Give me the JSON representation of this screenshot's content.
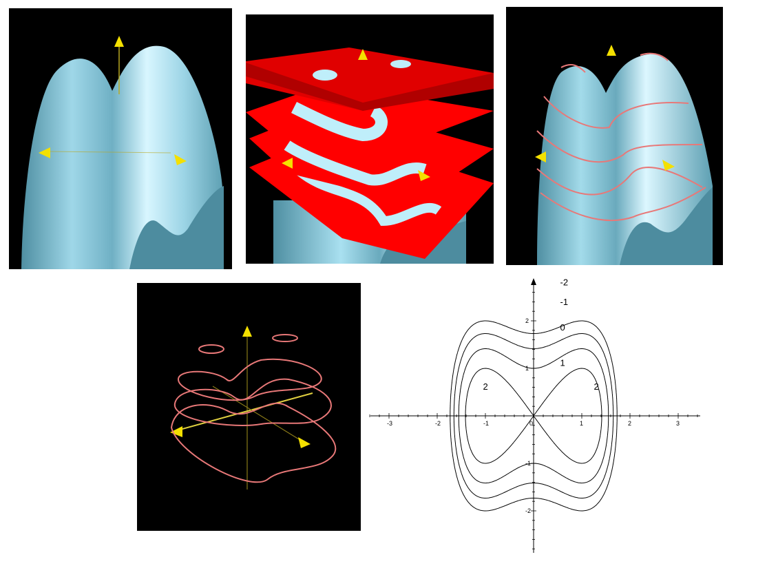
{
  "colors": {
    "background": "#000000",
    "surface_light": "#bfeefa",
    "surface_mid": "#8ecde0",
    "surface_dark": "#5a9cae",
    "plane": "#ff0000",
    "plane_dark": "#c00000",
    "contour_curve": "#e87878",
    "axis": "#d8c020",
    "arrow": "#f4e000"
  },
  "panels": [
    {
      "id": "surface",
      "content": "3D surface with two peaks"
    },
    {
      "id": "surface-with-planes",
      "content": "surface cut by horizontal red planes"
    },
    {
      "id": "surface-with-level-curves",
      "content": "surface with pink level curves"
    },
    {
      "id": "level-curves-3d",
      "content": "level curves on axes"
    }
  ],
  "chart_data": {
    "type": "contour",
    "function": "z = 2x^2 - x^4 - y^2 + const",
    "x_ticks": [
      "-3",
      "-2",
      "-1",
      "0",
      "1",
      "2",
      "3"
    ],
    "y_ticks": [
      "2",
      "1",
      "-1",
      "-2"
    ],
    "xlim": [
      -3.5,
      3.5
    ],
    "ylim": [
      -2.9,
      2.9
    ],
    "levels": [
      {
        "value": -2,
        "label": "-2",
        "x": 0.55,
        "y": 2.75
      },
      {
        "value": -1,
        "label": "-1",
        "x": 0.55,
        "y": 2.33
      },
      {
        "value": 0,
        "label": "0",
        "x": 0.55,
        "y": 1.8
      },
      {
        "value": 1,
        "label": "1",
        "x": 0.55,
        "y": 1.05
      },
      {
        "value": 2,
        "label": "2",
        "x": -1.05,
        "y": 0.55
      },
      {
        "value": 2,
        "label": "2",
        "x": 1.25,
        "y": 0.55
      }
    ]
  }
}
